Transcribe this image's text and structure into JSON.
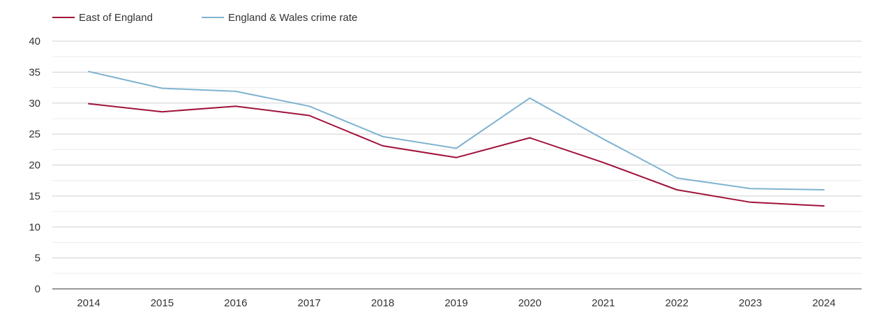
{
  "chart_data": {
    "type": "line",
    "title": "",
    "xlabel": "",
    "ylabel": "",
    "categories": [
      "2014",
      "2015",
      "2016",
      "2017",
      "2018",
      "2019",
      "2020",
      "2021",
      "2022",
      "2023",
      "2024"
    ],
    "series": [
      {
        "name": "East of England",
        "color": "#a0123a",
        "values": [
          29.9,
          28.6,
          29.5,
          28.0,
          23.1,
          21.2,
          24.4,
          20.4,
          16.0,
          14.0,
          13.4
        ]
      },
      {
        "name": "England & Wales crime rate",
        "color": "#7fb3d0",
        "values": [
          35.1,
          32.4,
          31.9,
          29.5,
          24.6,
          22.7,
          30.8,
          24.2,
          17.9,
          16.2,
          16.0
        ]
      }
    ],
    "ylim": [
      0,
      40
    ],
    "y_ticks": [
      0,
      5,
      10,
      15,
      20,
      25,
      30,
      35,
      40
    ],
    "grid": true,
    "legend_position": "top-left"
  }
}
